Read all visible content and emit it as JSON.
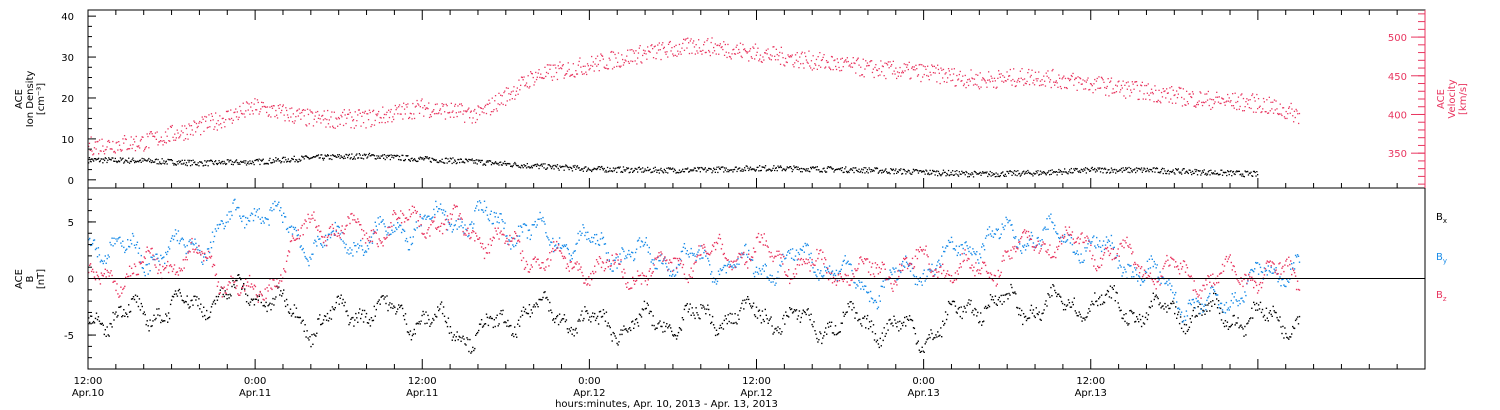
{
  "chart_data": [
    {
      "type": "scatter",
      "panel": "top",
      "ylabel_left": [
        "ACE",
        "Ion Density",
        "[cm⁻³]"
      ],
      "ylabel_right": [
        "ACE",
        "Velocity",
        "[km/s]"
      ],
      "yticks_left": [
        "0",
        "10",
        "20",
        "30",
        "40"
      ],
      "yticks_left_values": [
        0,
        10,
        20,
        30,
        40
      ],
      "ylim_left": [
        -2,
        41.5
      ],
      "yticks_right": [
        "350",
        "400",
        "450",
        "500"
      ],
      "yticks_right_values": [
        350,
        400,
        450,
        500
      ],
      "ylim_right": [
        305,
        535
      ],
      "series": [
        {
          "axis": "left",
          "color": "#000000",
          "hours": [
            0,
            4,
            8,
            12,
            16,
            20,
            24,
            28,
            32,
            36,
            40,
            44,
            48,
            52,
            56,
            60,
            64,
            68,
            72,
            76,
            80,
            84
          ],
          "values": [
            5,
            4.8,
            4.2,
            4.5,
            5.5,
            6,
            5.2,
            4.5,
            3.5,
            2.8,
            2.5,
            2.5,
            3,
            2.8,
            2.5,
            2,
            1.5,
            1.8,
            2.5,
            2.5,
            2,
            1.5
          ]
        },
        {
          "axis": "right",
          "color": "#e8355f",
          "hours": [
            0,
            4,
            8,
            12,
            16,
            20,
            24,
            28,
            32,
            36,
            40,
            44,
            48,
            52,
            56,
            60,
            64,
            68,
            72,
            76,
            80,
            84,
            87
          ],
          "values": [
            360,
            365,
            385,
            410,
            395,
            395,
            410,
            400,
            450,
            465,
            480,
            490,
            480,
            470,
            460,
            455,
            445,
            450,
            440,
            430,
            420,
            415,
            400
          ]
        }
      ]
    },
    {
      "type": "scatter",
      "panel": "bottom",
      "ylabel_left": [
        "ACE",
        "B",
        "[nT]"
      ],
      "yticks_left": [
        "-5",
        "0",
        "5"
      ],
      "yticks_left_values": [
        -5,
        0,
        5
      ],
      "ylim_left": [
        -8,
        8
      ],
      "legend": [
        "B",
        "B",
        "B"
      ],
      "legend_sub": [
        "x",
        "y",
        "z"
      ],
      "legend_placement": "right",
      "zero_line": true,
      "series": [
        {
          "name": "Bx",
          "color": "#000000",
          "hours": [
            0,
            4,
            8,
            12,
            16,
            20,
            24,
            28,
            32,
            36,
            40,
            44,
            48,
            52,
            56,
            60,
            64,
            68,
            72,
            76,
            80,
            84,
            87
          ],
          "values": [
            -3.5,
            -3,
            -2,
            -1,
            -4,
            -2.5,
            -3.5,
            -5,
            -2.5,
            -4,
            -4,
            -3.5,
            -3,
            -4,
            -3.8,
            -5,
            -2,
            -2.5,
            -2,
            -3,
            -3,
            -3.5,
            -3.5
          ]
        },
        {
          "name": "By",
          "color": "#1a8ce8",
          "hours": [
            0,
            4,
            8,
            12,
            16,
            20,
            24,
            28,
            32,
            36,
            40,
            44,
            48,
            52,
            56,
            60,
            64,
            68,
            72,
            76,
            80,
            84,
            87
          ],
          "values": [
            3.5,
            2,
            3,
            6.5,
            3,
            3.5,
            5,
            5.5,
            4,
            3,
            2,
            1.5,
            1,
            2,
            -1,
            1,
            3.5,
            4,
            3,
            0.5,
            -3,
            0,
            1.5
          ]
        },
        {
          "name": "Bz",
          "color": "#e8355f",
          "hours": [
            0,
            4,
            8,
            12,
            16,
            20,
            24,
            28,
            32,
            36,
            40,
            44,
            48,
            52,
            56,
            60,
            64,
            68,
            72,
            76,
            80,
            84,
            87
          ],
          "values": [
            -0.5,
            1,
            2,
            -2,
            5,
            4,
            5.5,
            4,
            2,
            1,
            0.5,
            2,
            2.5,
            1,
            0.5,
            1.5,
            0.5,
            3.5,
            3,
            1,
            0,
            0.5,
            0.5
          ]
        }
      ]
    }
  ],
  "x_axis": {
    "xlim_hours": [
      0,
      96
    ],
    "ticks_hours": [
      0,
      12,
      24,
      36,
      48,
      60,
      72,
      84
    ],
    "tick_time": [
      "12:00",
      "0:00",
      "12:00",
      "0:00",
      "12:00",
      "0:00",
      "12:00"
    ],
    "tick_date": [
      "Apr.10",
      "Apr.11",
      "Apr.11",
      "Apr.12",
      "Apr.12",
      "Apr.13",
      "Apr.13"
    ],
    "xlabel": "hours:minutes, Apr. 10, 2013 - Apr. 13, 2013"
  }
}
